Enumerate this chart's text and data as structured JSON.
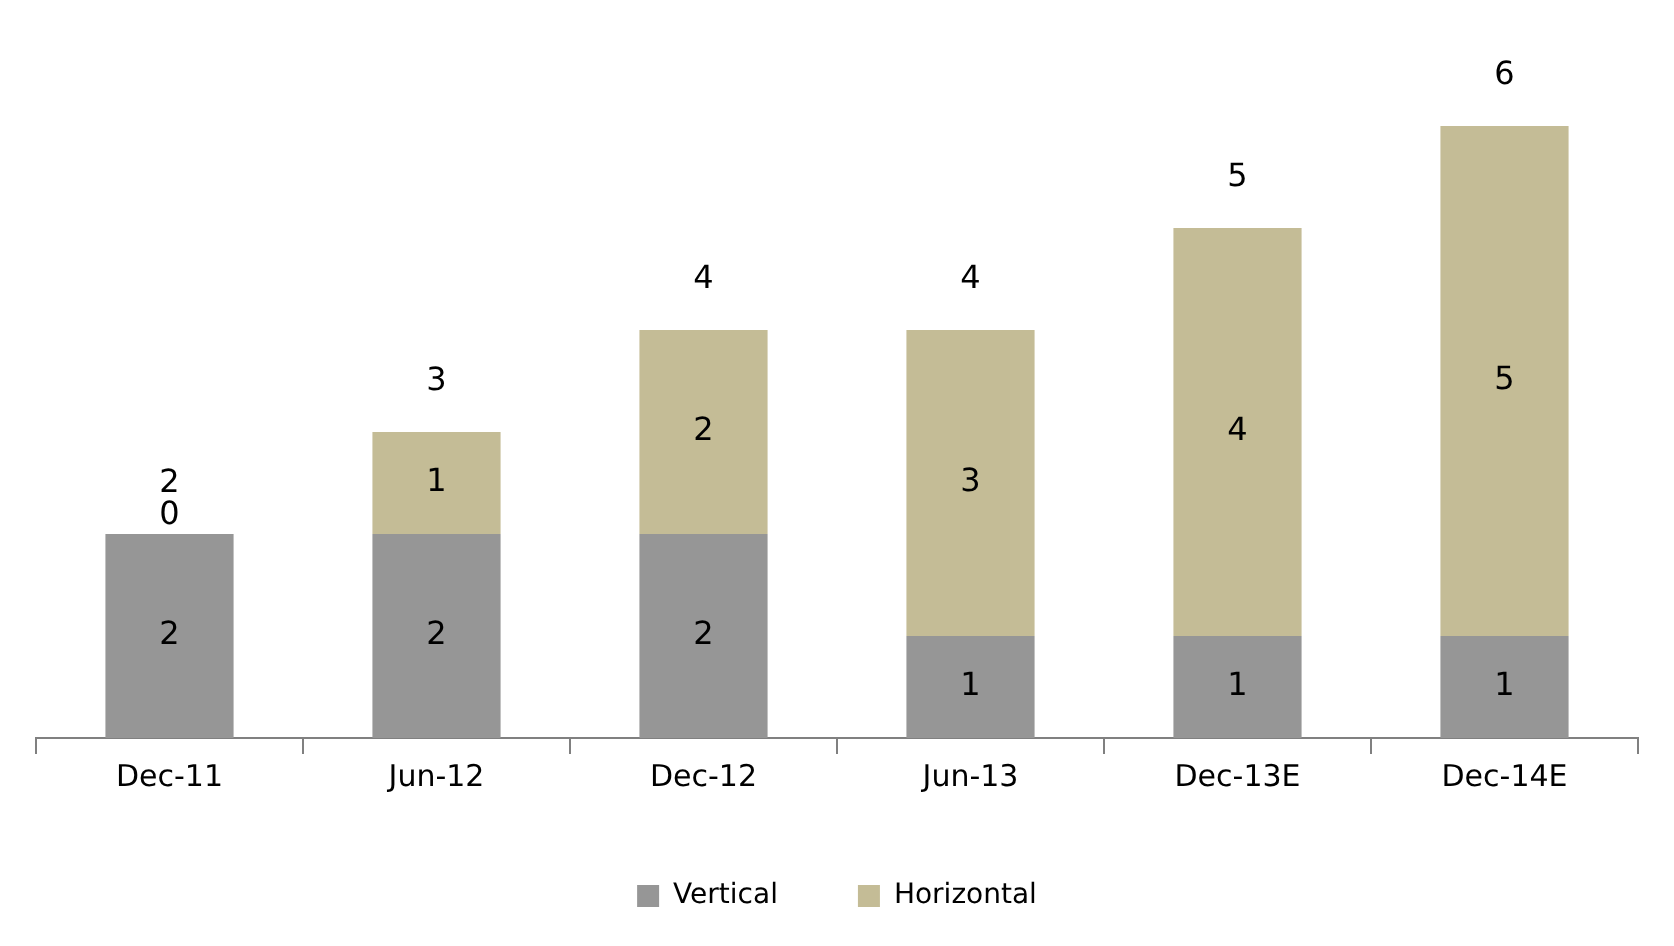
{
  "chart_data": {
    "type": "bar",
    "stacked": true,
    "categories": [
      "Dec-11",
      "Jun-12",
      "Dec-12",
      "Jun-13",
      "Dec-13E",
      "Dec-14E"
    ],
    "series": [
      {
        "name": "Vertical",
        "color": "#969696",
        "values": [
          2,
          2,
          2,
          1,
          1,
          1
        ]
      },
      {
        "name": "Horizontal",
        "color": "#c4bc96",
        "values": [
          0,
          1,
          2,
          3,
          4,
          5
        ]
      }
    ],
    "data_labels": true,
    "totals": [
      "2",
      "3",
      "4",
      "4",
      "5",
      "6"
    ],
    "legend": "bottom",
    "grid": false,
    "tick_labels": "x"
  }
}
